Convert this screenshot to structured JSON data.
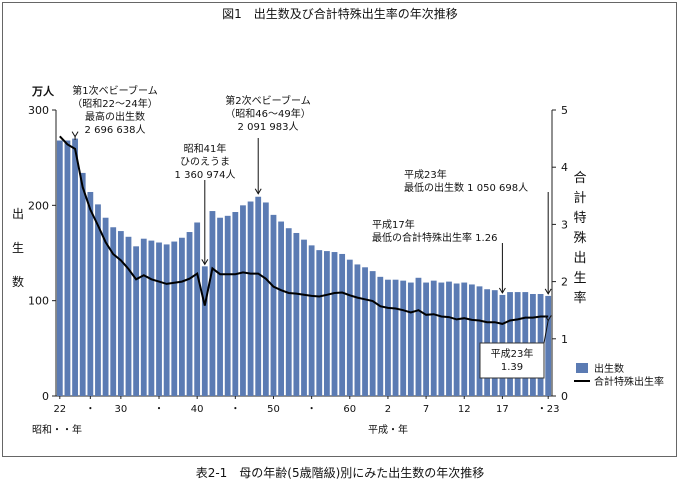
{
  "figure_title": "図1　出生数及び合計特殊出生率の年次推移",
  "table_caption": "表2-1　母の年齢(5歳階級)別にみた出生数の年次推移",
  "chart_data": {
    "type": "bar",
    "title": "図1　出生数及び合計特殊出生率の年次推移",
    "y_left_unit": "万人",
    "y_left_label": "出生数",
    "y_right_label": "合計特殊出生率",
    "y_left_ticks": [
      "0",
      "100",
      "200",
      "300"
    ],
    "y_right_ticks": [
      "0",
      "1",
      "2",
      "3",
      "4",
      "5"
    ],
    "ylim_left": [
      0,
      300
    ],
    "ylim_right": [
      0,
      5
    ],
    "x_tick_labels": [
      "22",
      "・",
      "30",
      "・",
      "40",
      "・",
      "50",
      "・",
      "60",
      "2",
      "7",
      "12",
      "17",
      "・23"
    ],
    "x_label_showa": "昭和・・年",
    "x_label_heisei": "平成・年",
    "years": [
      1947,
      1948,
      1949,
      1950,
      1951,
      1952,
      1953,
      1954,
      1955,
      1956,
      1957,
      1958,
      1959,
      1960,
      1961,
      1962,
      1963,
      1964,
      1965,
      1966,
      1967,
      1968,
      1969,
      1970,
      1971,
      1972,
      1973,
      1974,
      1975,
      1976,
      1977,
      1978,
      1979,
      1980,
      1981,
      1982,
      1983,
      1984,
      1985,
      1986,
      1987,
      1988,
      1989,
      1990,
      1991,
      1992,
      1993,
      1994,
      1995,
      1996,
      1997,
      1998,
      1999,
      2000,
      2001,
      2002,
      2003,
      2004,
      2005,
      2006,
      2007,
      2008,
      2009,
      2010,
      2011
    ],
    "series": [
      {
        "name": "出生数",
        "kind": "bar",
        "axis": "left",
        "color": "#5b7bb3",
        "values": [
          268,
          268,
          270,
          234,
          214,
          201,
          187,
          177,
          173,
          167,
          157,
          165,
          163,
          161,
          159,
          162,
          166,
          172,
          182,
          136,
          194,
          187,
          189,
          193,
          200,
          204,
          209,
          203,
          190,
          183,
          176,
          171,
          164,
          158,
          153,
          152,
          151,
          149,
          143,
          138,
          135,
          131,
          125,
          122,
          122,
          121,
          119,
          124,
          119,
          121,
          119,
          120,
          118,
          119,
          117,
          115,
          112,
          111,
          106,
          109,
          109,
          109,
          107,
          107,
          105
        ]
      },
      {
        "name": "合計特殊出生率",
        "kind": "line",
        "axis": "right",
        "color": "#000000",
        "values": [
          4.54,
          4.4,
          4.32,
          3.65,
          3.26,
          2.98,
          2.69,
          2.48,
          2.37,
          2.22,
          2.04,
          2.11,
          2.04,
          2.0,
          1.96,
          1.98,
          2.0,
          2.05,
          2.14,
          1.58,
          2.23,
          2.13,
          2.13,
          2.13,
          2.16,
          2.14,
          2.14,
          2.05,
          1.91,
          1.85,
          1.8,
          1.79,
          1.77,
          1.75,
          1.74,
          1.77,
          1.8,
          1.81,
          1.76,
          1.72,
          1.69,
          1.66,
          1.57,
          1.54,
          1.53,
          1.5,
          1.46,
          1.5,
          1.42,
          1.43,
          1.39,
          1.38,
          1.34,
          1.36,
          1.33,
          1.32,
          1.29,
          1.29,
          1.26,
          1.32,
          1.34,
          1.37,
          1.37,
          1.39,
          1.39
        ]
      }
    ],
    "legend_position": "bottom-right",
    "annotations": [
      {
        "id": "boom1",
        "lines": [
          "第1次ベビーブーム",
          "（昭和22～24年）",
          "最高の出生数",
          "2 696 638人"
        ]
      },
      {
        "id": "hinoeuma",
        "lines": [
          "昭和41年",
          "ひのえうま",
          "1 360 974人"
        ]
      },
      {
        "id": "boom2",
        "lines": [
          "第2次ベビーブーム",
          "（昭和46～49年）",
          "2 091 983人"
        ]
      },
      {
        "id": "h23low",
        "lines": [
          "平成23年",
          "最低の出生数 1 050 698人"
        ]
      },
      {
        "id": "h17low",
        "lines": [
          "平成17年",
          "最低の合計特殊出生率 1.26"
        ]
      },
      {
        "id": "h23rate",
        "lines": [
          "平成23年",
          "1.39"
        ]
      }
    ]
  }
}
